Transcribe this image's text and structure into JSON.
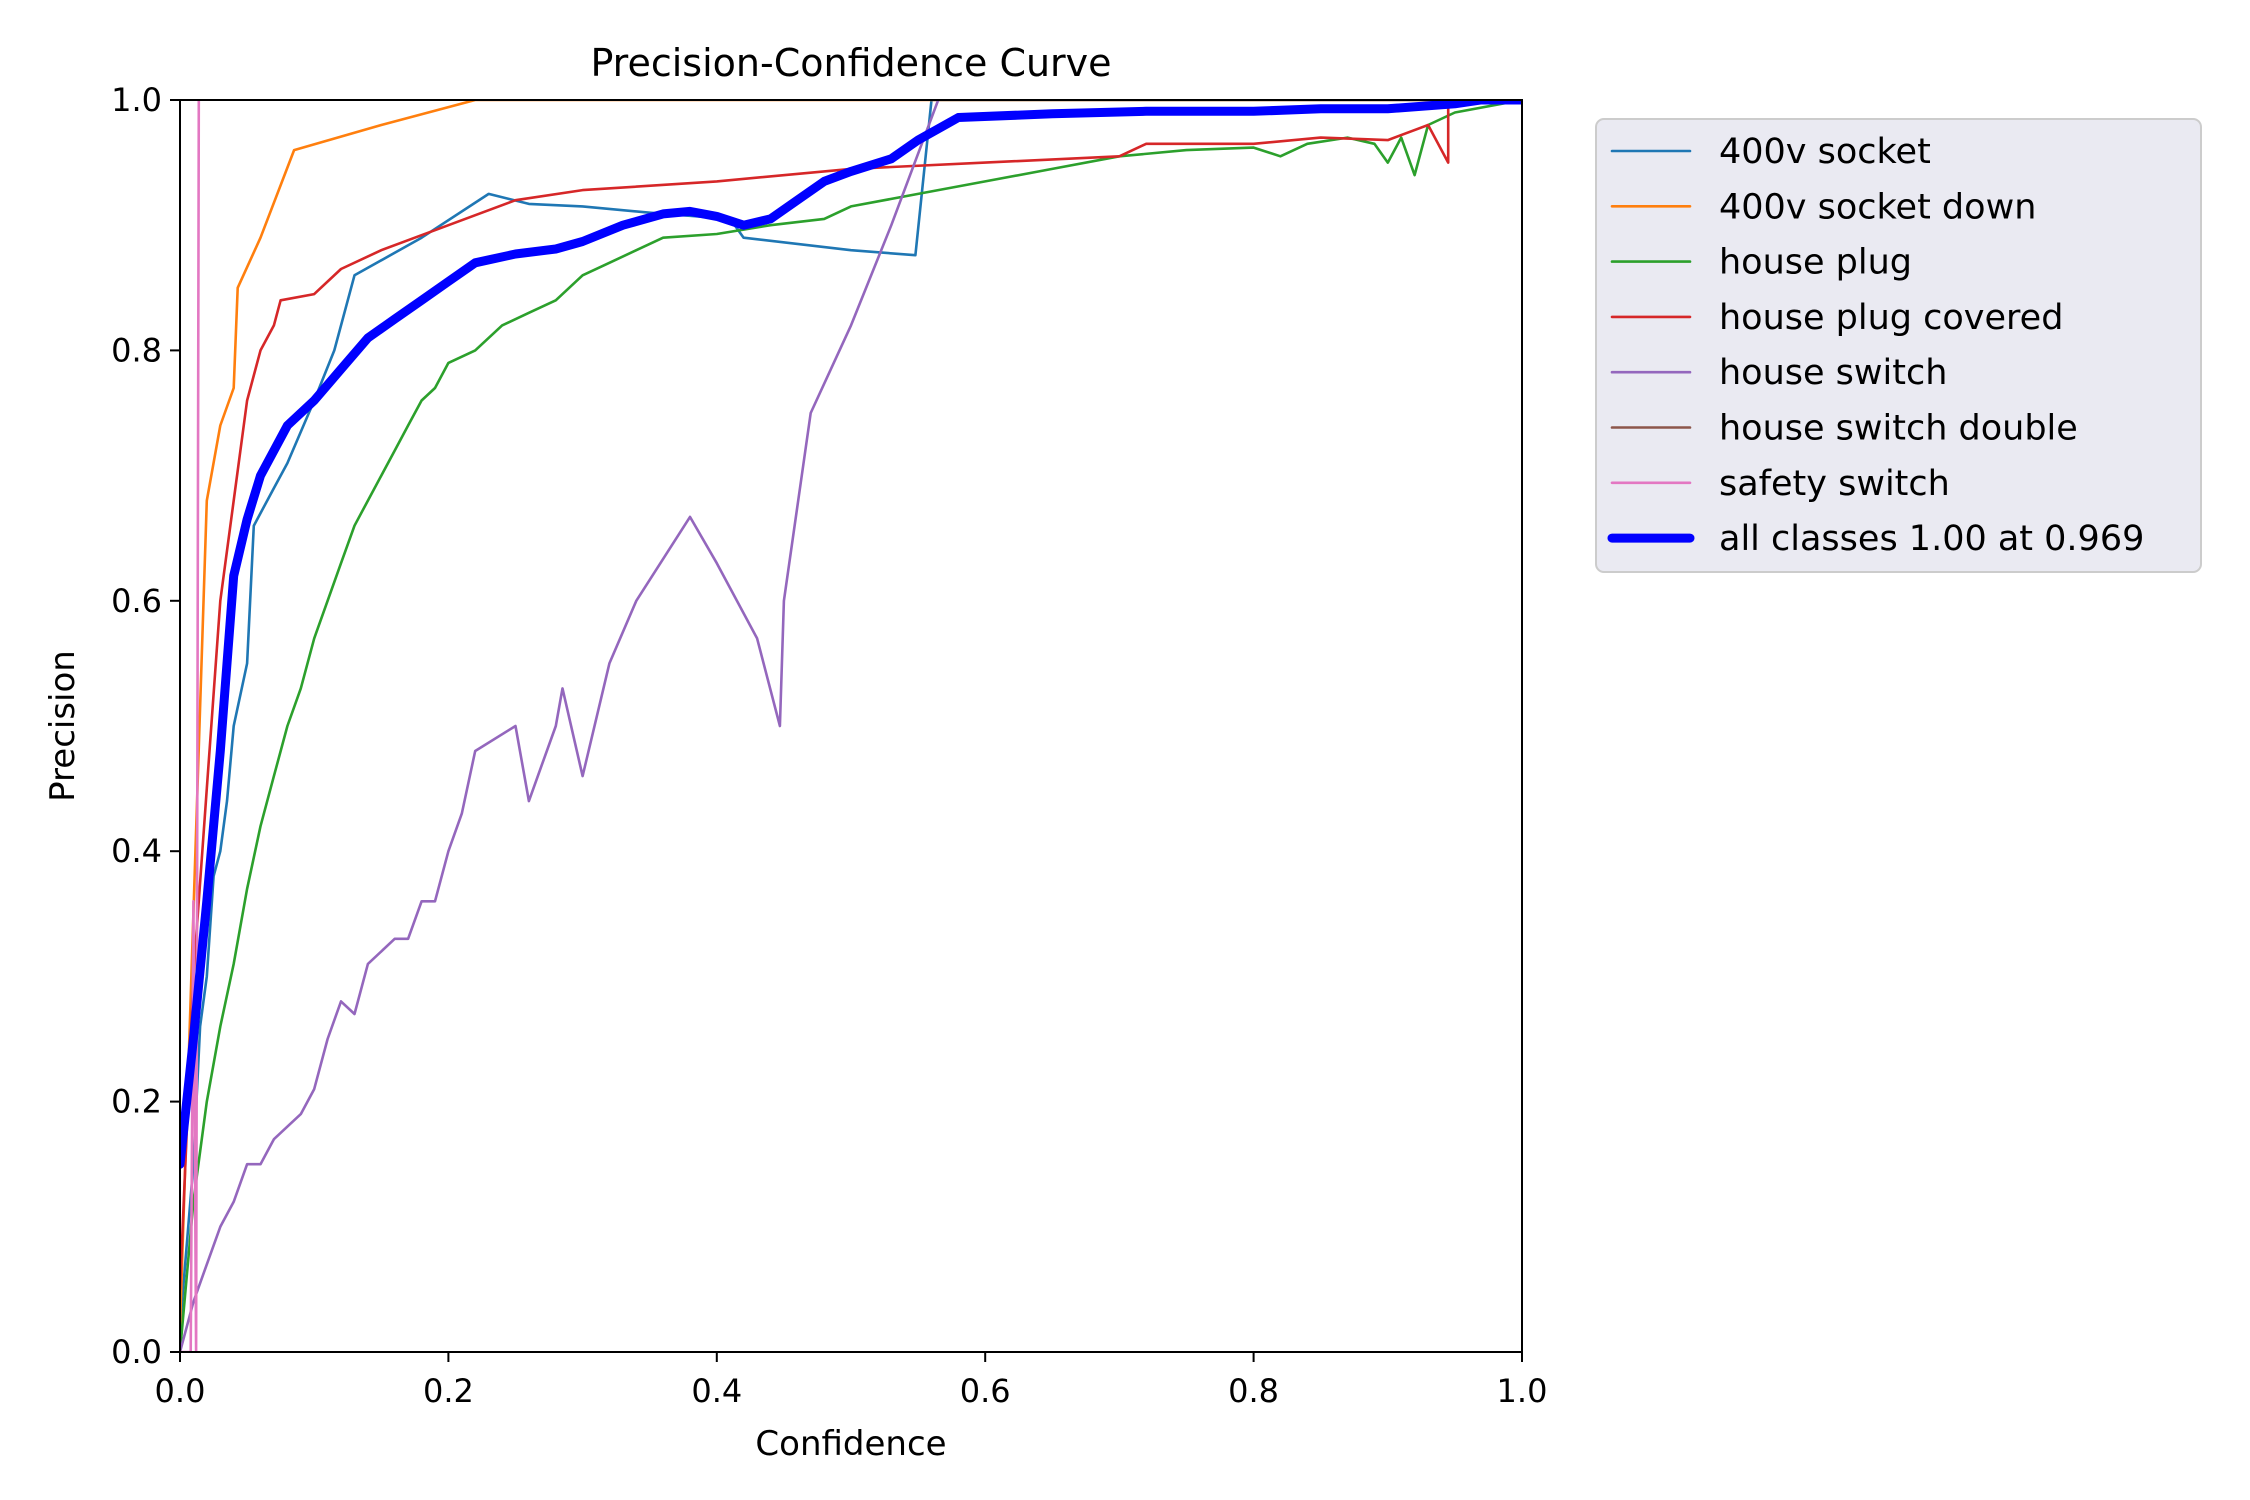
{
  "chart_data": {
    "type": "line",
    "title": "Precision-Confidence Curve",
    "xlabel": "Confidence",
    "ylabel": "Precision",
    "xlim": [
      0,
      1
    ],
    "ylim": [
      0,
      1
    ],
    "xticks": [
      "0.0",
      "0.2",
      "0.4",
      "0.6",
      "0.8",
      "1.0"
    ],
    "yticks": [
      "0.0",
      "0.2",
      "0.4",
      "0.6",
      "0.8",
      "1.0"
    ],
    "grid": false,
    "legend_position": "outside-top-right",
    "series": [
      {
        "name": "400v socket",
        "color": "#1f77b4",
        "points": [
          [
            0.0,
            0.02
          ],
          [
            0.01,
            0.15
          ],
          [
            0.015,
            0.26
          ],
          [
            0.02,
            0.3
          ],
          [
            0.025,
            0.38
          ],
          [
            0.03,
            0.4
          ],
          [
            0.035,
            0.44
          ],
          [
            0.04,
            0.5
          ],
          [
            0.05,
            0.55
          ],
          [
            0.055,
            0.66
          ],
          [
            0.07,
            0.69
          ],
          [
            0.08,
            0.71
          ],
          [
            0.1,
            0.76
          ],
          [
            0.115,
            0.8
          ],
          [
            0.13,
            0.86
          ],
          [
            0.18,
            0.89
          ],
          [
            0.23,
            0.925
          ],
          [
            0.26,
            0.917
          ],
          [
            0.3,
            0.915
          ],
          [
            0.35,
            0.91
          ],
          [
            0.41,
            0.905
          ],
          [
            0.42,
            0.89
          ],
          [
            0.5,
            0.88
          ],
          [
            0.548,
            0.876
          ],
          [
            0.56,
            1.0
          ],
          [
            1.0,
            1.0
          ]
        ]
      },
      {
        "name": "400v socket down",
        "color": "#ff7f0e",
        "points": [
          [
            0.0,
            0.02
          ],
          [
            0.01,
            0.35
          ],
          [
            0.02,
            0.68
          ],
          [
            0.03,
            0.74
          ],
          [
            0.04,
            0.77
          ],
          [
            0.043,
            0.85
          ],
          [
            0.06,
            0.89
          ],
          [
            0.085,
            0.96
          ],
          [
            0.15,
            0.98
          ],
          [
            0.22,
            1.0
          ],
          [
            1.0,
            1.0
          ]
        ]
      },
      {
        "name": "house plug",
        "color": "#2ca02c",
        "points": [
          [
            0.0,
            0.0
          ],
          [
            0.01,
            0.12
          ],
          [
            0.02,
            0.2
          ],
          [
            0.03,
            0.26
          ],
          [
            0.04,
            0.31
          ],
          [
            0.05,
            0.37
          ],
          [
            0.06,
            0.42
          ],
          [
            0.07,
            0.46
          ],
          [
            0.08,
            0.5
          ],
          [
            0.09,
            0.53
          ],
          [
            0.1,
            0.57
          ],
          [
            0.11,
            0.6
          ],
          [
            0.12,
            0.63
          ],
          [
            0.13,
            0.66
          ],
          [
            0.14,
            0.68
          ],
          [
            0.15,
            0.7
          ],
          [
            0.16,
            0.72
          ],
          [
            0.17,
            0.74
          ],
          [
            0.18,
            0.76
          ],
          [
            0.19,
            0.77
          ],
          [
            0.2,
            0.79
          ],
          [
            0.22,
            0.8
          ],
          [
            0.24,
            0.82
          ],
          [
            0.26,
            0.83
          ],
          [
            0.28,
            0.84
          ],
          [
            0.3,
            0.86
          ],
          [
            0.32,
            0.87
          ],
          [
            0.34,
            0.88
          ],
          [
            0.36,
            0.89
          ],
          [
            0.4,
            0.893
          ],
          [
            0.44,
            0.9
          ],
          [
            0.48,
            0.905
          ],
          [
            0.5,
            0.915
          ],
          [
            0.55,
            0.925
          ],
          [
            0.6,
            0.935
          ],
          [
            0.65,
            0.945
          ],
          [
            0.7,
            0.955
          ],
          [
            0.75,
            0.96
          ],
          [
            0.8,
            0.962
          ],
          [
            0.82,
            0.955
          ],
          [
            0.84,
            0.965
          ],
          [
            0.87,
            0.97
          ],
          [
            0.89,
            0.965
          ],
          [
            0.9,
            0.95
          ],
          [
            0.91,
            0.97
          ],
          [
            0.92,
            0.94
          ],
          [
            0.93,
            0.98
          ],
          [
            0.95,
            0.99
          ],
          [
            1.0,
            1.0
          ]
        ]
      },
      {
        "name": "house plug covered",
        "color": "#d62728",
        "points": [
          [
            0.0,
            0.05
          ],
          [
            0.01,
            0.3
          ],
          [
            0.02,
            0.45
          ],
          [
            0.03,
            0.6
          ],
          [
            0.04,
            0.68
          ],
          [
            0.05,
            0.76
          ],
          [
            0.06,
            0.8
          ],
          [
            0.07,
            0.82
          ],
          [
            0.075,
            0.84
          ],
          [
            0.1,
            0.845
          ],
          [
            0.12,
            0.865
          ],
          [
            0.15,
            0.88
          ],
          [
            0.2,
            0.9
          ],
          [
            0.25,
            0.92
          ],
          [
            0.3,
            0.928
          ],
          [
            0.4,
            0.935
          ],
          [
            0.5,
            0.945
          ],
          [
            0.6,
            0.95
          ],
          [
            0.7,
            0.955
          ],
          [
            0.72,
            0.965
          ],
          [
            0.8,
            0.965
          ],
          [
            0.85,
            0.97
          ],
          [
            0.9,
            0.968
          ],
          [
            0.93,
            0.98
          ],
          [
            0.945,
            0.95
          ],
          [
            0.945,
            1.0
          ],
          [
            1.0,
            1.0
          ]
        ]
      },
      {
        "name": "house switch",
        "color": "#9467bd",
        "points": [
          [
            0.0,
            0.0
          ],
          [
            0.01,
            0.04
          ],
          [
            0.02,
            0.07
          ],
          [
            0.03,
            0.1
          ],
          [
            0.04,
            0.12
          ],
          [
            0.05,
            0.15
          ],
          [
            0.06,
            0.15
          ],
          [
            0.07,
            0.17
          ],
          [
            0.08,
            0.18
          ],
          [
            0.09,
            0.19
          ],
          [
            0.1,
            0.21
          ],
          [
            0.11,
            0.25
          ],
          [
            0.12,
            0.28
          ],
          [
            0.13,
            0.27
          ],
          [
            0.14,
            0.31
          ],
          [
            0.15,
            0.32
          ],
          [
            0.16,
            0.33
          ],
          [
            0.17,
            0.33
          ],
          [
            0.18,
            0.36
          ],
          [
            0.19,
            0.36
          ],
          [
            0.2,
            0.4
          ],
          [
            0.21,
            0.43
          ],
          [
            0.22,
            0.48
          ],
          [
            0.25,
            0.5
          ],
          [
            0.26,
            0.44
          ],
          [
            0.27,
            0.47
          ],
          [
            0.28,
            0.5
          ],
          [
            0.285,
            0.53
          ],
          [
            0.3,
            0.46
          ],
          [
            0.32,
            0.55
          ],
          [
            0.34,
            0.6
          ],
          [
            0.38,
            0.667
          ],
          [
            0.4,
            0.63
          ],
          [
            0.43,
            0.57
          ],
          [
            0.447,
            0.5
          ],
          [
            0.45,
            0.6
          ],
          [
            0.47,
            0.75
          ],
          [
            0.5,
            0.82
          ],
          [
            0.53,
            0.9
          ],
          [
            0.565,
            1.0
          ]
        ]
      },
      {
        "name": "house switch double",
        "color": "#8c564b",
        "points": []
      },
      {
        "name": "safety switch",
        "color": "#e377c2",
        "points": [
          [
            0.0,
            0.0
          ],
          [
            0.008,
            0.0
          ],
          [
            0.01,
            0.36
          ],
          [
            0.012,
            0.0
          ],
          [
            0.014,
            1.0
          ]
        ]
      },
      {
        "name": "all classes 1.00 at 0.969",
        "color": "#0000ff",
        "thick": true,
        "points": [
          [
            0.0,
            0.15
          ],
          [
            0.01,
            0.25
          ],
          [
            0.02,
            0.36
          ],
          [
            0.03,
            0.48
          ],
          [
            0.04,
            0.62
          ],
          [
            0.05,
            0.665
          ],
          [
            0.06,
            0.7
          ],
          [
            0.08,
            0.74
          ],
          [
            0.1,
            0.76
          ],
          [
            0.12,
            0.785
          ],
          [
            0.14,
            0.81
          ],
          [
            0.16,
            0.825
          ],
          [
            0.18,
            0.84
          ],
          [
            0.2,
            0.855
          ],
          [
            0.22,
            0.87
          ],
          [
            0.25,
            0.877
          ],
          [
            0.28,
            0.881
          ],
          [
            0.3,
            0.887
          ],
          [
            0.33,
            0.9
          ],
          [
            0.36,
            0.909
          ],
          [
            0.38,
            0.911
          ],
          [
            0.4,
            0.907
          ],
          [
            0.42,
            0.9
          ],
          [
            0.44,
            0.905
          ],
          [
            0.46,
            0.92
          ],
          [
            0.48,
            0.935
          ],
          [
            0.5,
            0.943
          ],
          [
            0.53,
            0.953
          ],
          [
            0.55,
            0.968
          ],
          [
            0.58,
            0.986
          ],
          [
            0.65,
            0.989
          ],
          [
            0.72,
            0.991
          ],
          [
            0.8,
            0.991
          ],
          [
            0.85,
            0.993
          ],
          [
            0.9,
            0.993
          ],
          [
            0.95,
            0.997
          ],
          [
            0.969,
            1.0
          ],
          [
            1.0,
            1.0
          ]
        ]
      }
    ]
  }
}
